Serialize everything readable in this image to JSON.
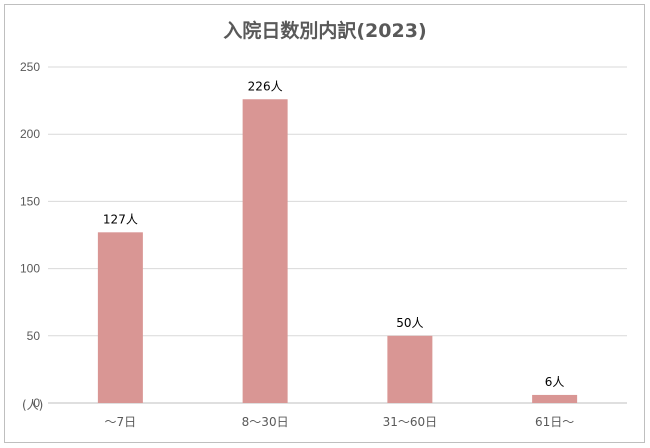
{
  "chart_data": {
    "type": "bar",
    "title": "入院日数別内訳(2023)",
    "ylabel": "(人)",
    "categories": [
      "～7日",
      "8～30日",
      "31～60日",
      "61日～"
    ],
    "values": [
      127,
      226,
      50,
      6
    ],
    "data_labels": [
      "127人",
      "226人",
      "50人",
      "6人"
    ],
    "y_ticks": [
      0,
      50,
      100,
      150,
      200,
      250
    ],
    "ylim": [
      0,
      250
    ],
    "grid": true,
    "legend": "none",
    "bar_color": "#d99694",
    "grid_color": "#d9d9d9"
  }
}
